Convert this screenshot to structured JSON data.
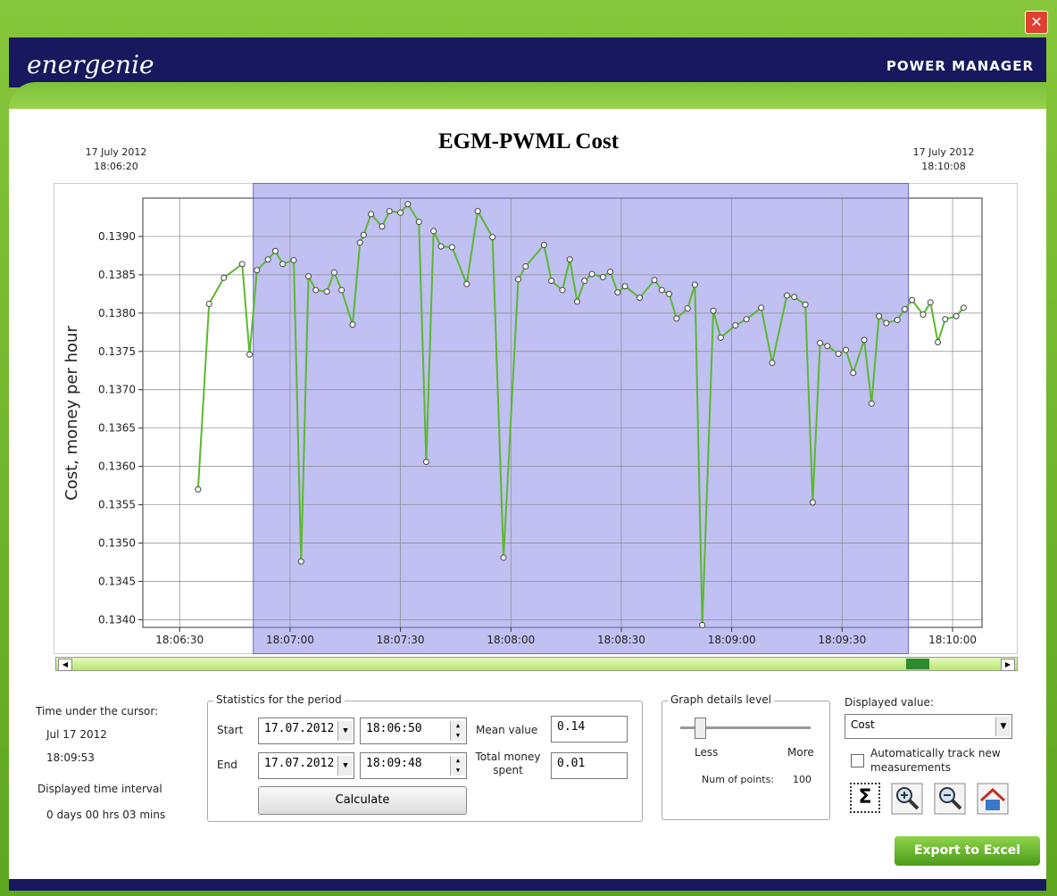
{
  "header": {
    "logo": "energenie",
    "product": "POWER MANAGER"
  },
  "chart_data": {
    "type": "line",
    "title": "EGM-PWML Cost",
    "y_label": "Cost, money per hour",
    "start_label": {
      "date": "17 July 2012",
      "time": "18:06:20"
    },
    "end_label": {
      "date": "17 July 2012",
      "time": "18:10:08"
    },
    "color": "#5cb82e",
    "grid": true,
    "xlim": [
      "18:06:20",
      "18:10:08"
    ],
    "xticks": [
      "18:06:30",
      "18:07:00",
      "18:07:30",
      "18:08:00",
      "18:08:30",
      "18:09:00",
      "18:09:30",
      "18:10:00"
    ],
    "ylim": [
      0.1339,
      0.1395
    ],
    "yticks": [
      {
        "value": 0.134,
        "label": "0.1340"
      },
      0.1345,
      {
        "value": 0.135,
        "label": "0.1350"
      },
      0.1355,
      {
        "value": 0.136,
        "label": "0.1360"
      },
      0.1365,
      {
        "value": 0.137,
        "label": "0.1370"
      },
      0.1375,
      {
        "value": 0.138,
        "label": "0.1380"
      },
      0.1385,
      {
        "value": 0.139,
        "label": "0.1390"
      }
    ],
    "x": [
      "18:06:35",
      "18:06:38",
      "18:06:42",
      "18:06:47",
      "18:06:49",
      "18:06:51",
      "18:06:54",
      "18:06:56",
      "18:06:58",
      "18:07:01",
      "18:07:03",
      "18:07:05",
      "18:07:07",
      "18:07:10",
      "18:07:12",
      "18:07:14",
      "18:07:17",
      "18:07:19",
      "18:07:20",
      "18:07:22",
      "18:07:25",
      "18:07:27",
      "18:07:30",
      "18:07:32",
      "18:07:35",
      "18:07:37",
      "18:07:39",
      "18:07:41",
      "18:07:44",
      "18:07:48",
      "18:07:51",
      "18:07:55",
      "18:07:58",
      "18:08:02",
      "18:08:04",
      "18:08:09",
      "18:08:11",
      "18:08:14",
      "18:08:16",
      "18:08:18",
      "18:08:20",
      "18:08:22",
      "18:08:25",
      "18:08:27",
      "18:08:29",
      "18:08:31",
      "18:08:35",
      "18:08:39",
      "18:08:41",
      "18:08:43",
      "18:08:45",
      "18:08:48",
      "18:08:50",
      "18:08:52",
      "18:08:55",
      "18:08:57",
      "18:09:01",
      "18:09:04",
      "18:09:08",
      "18:09:11",
      "18:09:15",
      "18:09:17",
      "18:09:20",
      "18:09:22",
      "18:09:24",
      "18:09:26",
      "18:09:29",
      "18:09:31",
      "18:09:33",
      "18:09:36",
      "18:09:38",
      "18:09:40",
      "18:09:42",
      "18:09:45",
      "18:09:47",
      "18:09:49",
      "18:09:52",
      "18:09:54",
      "18:09:56",
      "18:09:58",
      "18:10:01",
      "18:10:03"
    ],
    "values": [
      0.1357,
      0.13812,
      0.13846,
      0.13864,
      0.13746,
      0.13856,
      0.1387,
      0.13881,
      0.13864,
      0.13869,
      0.13476,
      0.13848,
      0.1383,
      0.13828,
      0.13853,
      0.1383,
      0.13785,
      0.13892,
      0.13902,
      0.13929,
      0.13913,
      0.13933,
      0.13931,
      0.13942,
      0.13919,
      0.13606,
      0.13907,
      0.13887,
      0.13886,
      0.13838,
      0.13933,
      0.13899,
      0.13481,
      0.13844,
      0.13861,
      0.13889,
      0.13842,
      0.1383,
      0.1387,
      0.13815,
      0.13842,
      0.13851,
      0.13847,
      0.13854,
      0.13827,
      0.13835,
      0.1382,
      0.13843,
      0.1383,
      0.13825,
      0.13793,
      0.13806,
      0.13837,
      0.13393,
      0.13803,
      0.13768,
      0.13784,
      0.13792,
      0.13807,
      0.13735,
      0.13823,
      0.13821,
      0.13811,
      0.13553,
      0.13761,
      0.13757,
      0.13747,
      0.13752,
      0.13722,
      0.13765,
      0.13682,
      0.13796,
      0.13787,
      0.13791,
      0.13805,
      0.13817,
      0.13798,
      0.13814,
      0.13762,
      0.13792,
      0.13796,
      0.13807
    ]
  },
  "cursor": {
    "label": "Time under the cursor:",
    "date": "Jul 17 2012",
    "time": "18:09:53"
  },
  "interval": {
    "label": "Displayed time interval",
    "value": "0 days 00 hrs 03 mins"
  },
  "statistics": {
    "title": "Statistics for the period",
    "start_label": "Start",
    "start_date": "17.07.2012",
    "start_time": "18:06:50",
    "end_label": "End",
    "end_date": "17.07.2012",
    "end_time": "18:09:48",
    "mean_label": "Mean value",
    "mean_value": "0.14",
    "total_label": "Total money spent",
    "total_value": "0.01",
    "button": "Calculate"
  },
  "details": {
    "title": "Graph details level",
    "less": "Less",
    "more": "More",
    "points_label": "Num of points:",
    "points": 100
  },
  "display": {
    "label": "Displayed value:",
    "selected": "Cost",
    "track": "Automatically track new measurements"
  },
  "export": "Export to Excel"
}
